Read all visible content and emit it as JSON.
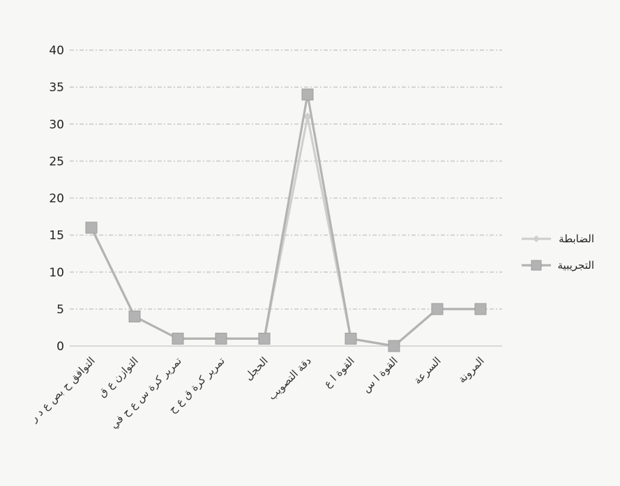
{
  "chart_data": {
    "type": "line",
    "categories": [
      "التوافق ح بص ع د ر",
      "التوازن ع ق",
      "تمرير كرة س ع ح في",
      "تمرير كرة ق ع ح",
      "الحجل",
      "دقة التصويب",
      "القوة ا ع",
      "القوة ا س",
      "السرعة",
      "المرونة"
    ],
    "series": [
      {
        "name": "الضابطة",
        "values": [
          16,
          4,
          1,
          1,
          1,
          31,
          1,
          0,
          5,
          5
        ],
        "color": "#cfcfcf",
        "marker": "diamond"
      },
      {
        "name": "التجريبية",
        "values": [
          16,
          4,
          1,
          1,
          1,
          34,
          1,
          0,
          5,
          5
        ],
        "color": "#b3b3b3",
        "marker": "square"
      }
    ],
    "ylim": [
      0,
      40
    ],
    "yticks": [
      0,
      5,
      10,
      15,
      20,
      25,
      30,
      35,
      40
    ],
    "grid": true,
    "legend": "right"
  }
}
